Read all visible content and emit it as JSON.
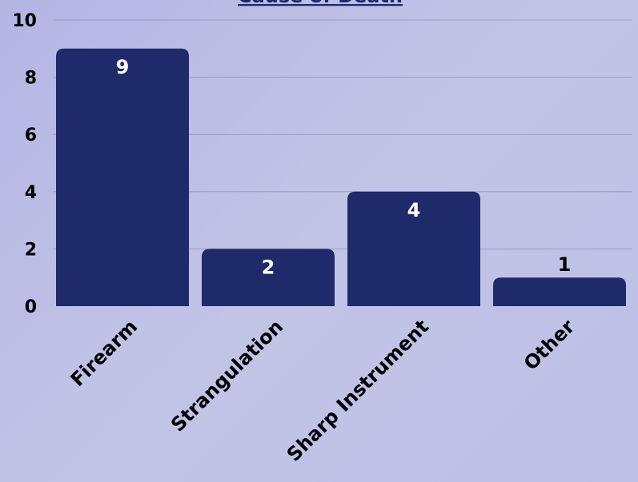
{
  "chart_data": {
    "type": "bar",
    "title": "Cause of Death",
    "categories": [
      "Firearm",
      "Strangulation",
      "Sharp Instrument",
      "Other"
    ],
    "values": [
      9,
      2,
      4,
      1
    ],
    "xlabel": "",
    "ylabel": "",
    "ylim": [
      0,
      10
    ],
    "yticks": [
      0,
      2,
      4,
      6,
      8,
      10
    ],
    "grid": true,
    "legend": "none"
  },
  "colors": {
    "bar": "#1f2a6b",
    "title": "#1f2a6b",
    "grid": "#9a9cc4",
    "label_inside": "#ffffff",
    "label_outside": "#000000"
  }
}
